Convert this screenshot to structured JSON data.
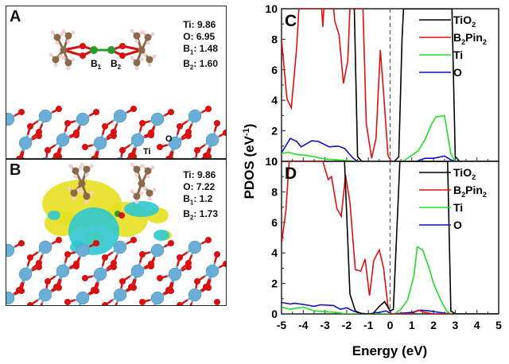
{
  "panelA": {
    "label": "A",
    "charges": [
      {
        "el": "Ti",
        "sub": "",
        "value": "9.86"
      },
      {
        "el": "O",
        "sub": "",
        "value": "6.95"
      },
      {
        "el": "B",
        "sub": "1",
        "value": "1.48"
      },
      {
        "el": "B",
        "sub": "2",
        "value": "1.60"
      }
    ],
    "atom_labels": {
      "b1": "B",
      "b1_sub": "1",
      "b2": "B",
      "b2_sub": "2",
      "ti": "Ti",
      "o": "O"
    }
  },
  "panelB": {
    "label": "B",
    "charges": [
      {
        "el": "Ti",
        "sub": "",
        "value": "9.86"
      },
      {
        "el": "O",
        "sub": "",
        "value": "7.22"
      },
      {
        "el": "B",
        "sub": "1",
        "value": "1.2"
      },
      {
        "el": "B",
        "sub": "2",
        "value": "1.73"
      }
    ]
  },
  "colors": {
    "TiO2": "#000000",
    "B2Pin2": "#e01010",
    "Ti": "#22dd22",
    "O": "#1010c0",
    "ti_atom": "#6aaed6",
    "o_atom": "#d81010",
    "c_atom": "#8a6a4a",
    "h_atom": "#f0d0d0",
    "b_atom": "#2a9a2a",
    "iso_yellow": "#e6e020",
    "iso_cyan": "#30c8d0"
  },
  "chart_data": [
    {
      "type": "line",
      "panel_label": "C",
      "xlabel": "Energy (eV)",
      "ylabel": "PDOS (eV-1)",
      "xlim": [
        -5,
        5
      ],
      "ylim": [
        0,
        10
      ],
      "xticks": [
        "-5",
        "-4",
        "-3",
        "-2",
        "-1",
        "0",
        "1",
        "2",
        "3",
        "4",
        "5"
      ],
      "yticks": [
        "0",
        "2",
        "4",
        "6",
        "8",
        "10"
      ],
      "fermi_level": 0,
      "legend": {
        "position": "top-right",
        "entries": [
          "TiO2",
          "B2Pin2",
          "Ti",
          "O"
        ]
      },
      "series": [
        {
          "name": "TiO2",
          "points": [
            [
              -1.65,
              10
            ],
            [
              -1.5,
              0.3
            ],
            [
              -1.3,
              0
            ],
            [
              0.2,
              0
            ],
            [
              0.4,
              0.3
            ],
            [
              0.55,
              8
            ],
            [
              0.62,
              10
            ],
            [
              2.85,
              10
            ],
            [
              3.0,
              0.3
            ],
            [
              3.2,
              0
            ],
            [
              5,
              0
            ]
          ]
        },
        {
          "name": "B2Pin2",
          "points": [
            [
              -5,
              8
            ],
            [
              -4.75,
              4.1
            ],
            [
              -4.55,
              3.5
            ],
            [
              -4.3,
              7.5
            ],
            [
              -4.2,
              10
            ],
            [
              -3.15,
              10
            ],
            [
              -3.1,
              8.8
            ],
            [
              -3.05,
              10
            ],
            [
              -2.6,
              10
            ],
            [
              -2.55,
              9.2
            ],
            [
              -2.35,
              8.3
            ],
            [
              -2.15,
              5.1
            ],
            [
              -1.95,
              6.6
            ],
            [
              -1.85,
              10
            ],
            [
              -1.25,
              10
            ],
            [
              -1.1,
              2.5
            ],
            [
              -0.85,
              0.2
            ],
            [
              -0.65,
              1.5
            ],
            [
              -0.45,
              7.3
            ],
            [
              -0.3,
              4.5
            ],
            [
              -0.1,
              0.4
            ],
            [
              0.05,
              0
            ],
            [
              5,
              0
            ]
          ]
        },
        {
          "name": "Ti",
          "points": [
            [
              -5,
              0.5
            ],
            [
              -4.7,
              0.6
            ],
            [
              -4.3,
              0.45
            ],
            [
              -3.9,
              0.4
            ],
            [
              -3.5,
              0.3
            ],
            [
              -3.0,
              0.15
            ],
            [
              -2.5,
              0.1
            ],
            [
              -2.0,
              0.05
            ],
            [
              -1.6,
              0
            ],
            [
              0.6,
              0
            ],
            [
              1.0,
              0.4
            ],
            [
              1.3,
              0.7
            ],
            [
              1.6,
              1.4
            ],
            [
              1.9,
              2.4
            ],
            [
              2.1,
              2.9
            ],
            [
              2.5,
              3.0
            ],
            [
              2.8,
              0.5
            ],
            [
              3.0,
              0
            ],
            [
              5,
              0
            ]
          ]
        },
        {
          "name": "O",
          "points": [
            [
              -5,
              0.55
            ],
            [
              -4.6,
              1.5
            ],
            [
              -4.3,
              1.3
            ],
            [
              -4.1,
              0.95
            ],
            [
              -3.6,
              1.35
            ],
            [
              -3.3,
              1.3
            ],
            [
              -2.8,
              0.95
            ],
            [
              -2.4,
              1.0
            ],
            [
              -2.1,
              0.85
            ],
            [
              -1.7,
              0.2
            ],
            [
              -1.5,
              0
            ],
            [
              1.2,
              0
            ],
            [
              1.6,
              0.2
            ],
            [
              2.0,
              0.2
            ],
            [
              2.5,
              0.35
            ],
            [
              2.8,
              0.1
            ],
            [
              3.0,
              0
            ],
            [
              5,
              0
            ]
          ]
        }
      ]
    },
    {
      "type": "line",
      "panel_label": "D",
      "xlabel": "Energy (eV)",
      "ylabel": "PDOS (eV-1)",
      "xlim": [
        -5,
        5
      ],
      "ylim": [
        0,
        10
      ],
      "xticks": [
        "-5",
        "-4",
        "-3",
        "-2",
        "-1",
        "0",
        "1",
        "2",
        "3",
        "4",
        "5"
      ],
      "yticks": [
        "0",
        "2",
        "4",
        "6",
        "8",
        "10"
      ],
      "fermi_level": 0,
      "legend": {
        "position": "top-right",
        "entries": [
          "TiO2",
          "B2Pin2",
          "Ti",
          "O"
        ]
      },
      "series": [
        {
          "name": "TiO2",
          "points": [
            [
              -2.1,
              10
            ],
            [
              -1.85,
              1.3
            ],
            [
              -1.6,
              0.2
            ],
            [
              -1.3,
              0
            ],
            [
              -0.8,
              0
            ],
            [
              -0.5,
              0.5
            ],
            [
              -0.25,
              0.8
            ],
            [
              0,
              0.2
            ],
            [
              0.15,
              0.3
            ],
            [
              0.45,
              10
            ],
            [
              2.65,
              10
            ],
            [
              2.8,
              0.2
            ],
            [
              3.0,
              0
            ],
            [
              5,
              0
            ]
          ]
        },
        {
          "name": "B2Pin2",
          "points": [
            [
              -5,
              4.6
            ],
            [
              -4.8,
              6.8
            ],
            [
              -4.65,
              10
            ],
            [
              -3.1,
              10
            ],
            [
              -2.85,
              8.8
            ],
            [
              -2.7,
              9.0
            ],
            [
              -2.45,
              6.9
            ],
            [
              -2.25,
              6.4
            ],
            [
              -2.05,
              9.1
            ],
            [
              -1.85,
              7.3
            ],
            [
              -1.6,
              2.9
            ],
            [
              -1.35,
              2.8
            ],
            [
              -1.15,
              3.6
            ],
            [
              -0.95,
              1.2
            ],
            [
              -0.75,
              3.5
            ],
            [
              -0.5,
              4.2
            ],
            [
              -0.3,
              3.0
            ],
            [
              -0.1,
              0.5
            ],
            [
              0.05,
              0
            ],
            [
              1.0,
              0
            ],
            [
              1.3,
              0.25
            ],
            [
              1.6,
              0.1
            ],
            [
              2.0,
              0
            ],
            [
              5,
              0
            ]
          ]
        },
        {
          "name": "Ti",
          "points": [
            [
              -5,
              0.45
            ],
            [
              -4.6,
              0.3
            ],
            [
              -4.0,
              0.45
            ],
            [
              -3.5,
              0.2
            ],
            [
              -3.0,
              0.15
            ],
            [
              -2.5,
              0.1
            ],
            [
              -2.0,
              0
            ],
            [
              0.2,
              0
            ],
            [
              0.5,
              0.3
            ],
            [
              0.8,
              0.9
            ],
            [
              1.1,
              2.5
            ],
            [
              1.25,
              4.4
            ],
            [
              1.5,
              4.2
            ],
            [
              1.8,
              3.0
            ],
            [
              2.0,
              2.0
            ],
            [
              2.3,
              1.0
            ],
            [
              2.6,
              0.2
            ],
            [
              2.8,
              0
            ],
            [
              5,
              0
            ]
          ]
        },
        {
          "name": "O",
          "points": [
            [
              -5,
              0.75
            ],
            [
              -4.6,
              0.65
            ],
            [
              -4.4,
              0.7
            ],
            [
              -3.9,
              0.6
            ],
            [
              -3.5,
              0.5
            ],
            [
              -3.2,
              0.6
            ],
            [
              -2.6,
              0.55
            ],
            [
              -2.3,
              0.3
            ],
            [
              -2.0,
              0.4
            ],
            [
              -1.7,
              0.2
            ],
            [
              -1.4,
              0.05
            ],
            [
              -1.0,
              0
            ],
            [
              -0.5,
              0.1
            ],
            [
              -0.2,
              0.2
            ],
            [
              0.1,
              0
            ],
            [
              1.0,
              0.1
            ],
            [
              1.4,
              0.25
            ],
            [
              1.8,
              0.2
            ],
            [
              2.5,
              0.05
            ],
            [
              3.0,
              0
            ],
            [
              5,
              0
            ]
          ]
        }
      ]
    }
  ]
}
